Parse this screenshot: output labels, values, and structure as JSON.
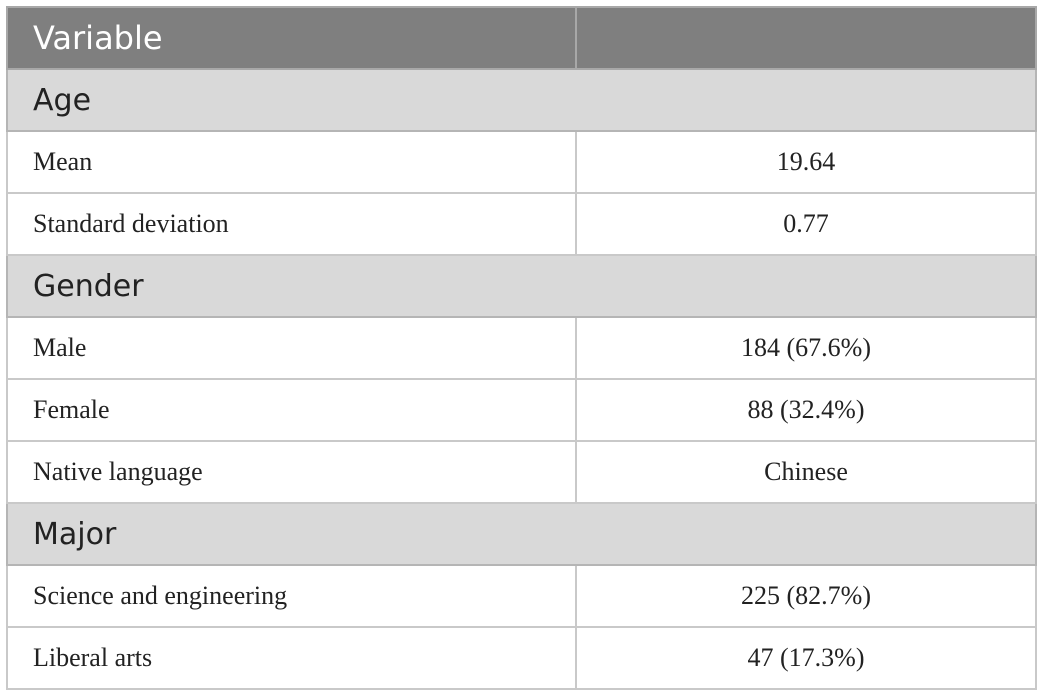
{
  "table": {
    "header": [
      "Variable",
      ""
    ],
    "sections": [
      {
        "title": "Age",
        "rows": [
          {
            "label": "Mean",
            "value": "19.64"
          },
          {
            "label": "Standard deviation",
            "value": "0.77"
          }
        ]
      },
      {
        "title": "Gender",
        "rows": [
          {
            "label": "Male",
            "value": "184 (67.6%)"
          },
          {
            "label": "Female",
            "value": "88 (32.4%)"
          },
          {
            "label": "Native language",
            "value": "Chinese"
          }
        ]
      },
      {
        "title": "Major",
        "rows": [
          {
            "label": "Science and engineering",
            "value": "225 (82.7%)"
          },
          {
            "label": "Liberal arts",
            "value": "47 (17.3%)"
          }
        ]
      }
    ]
  },
  "colors": {
    "header_bg": "#7f7f7f",
    "section_bg": "#d9d9d9",
    "border": "#c9c9c9"
  }
}
